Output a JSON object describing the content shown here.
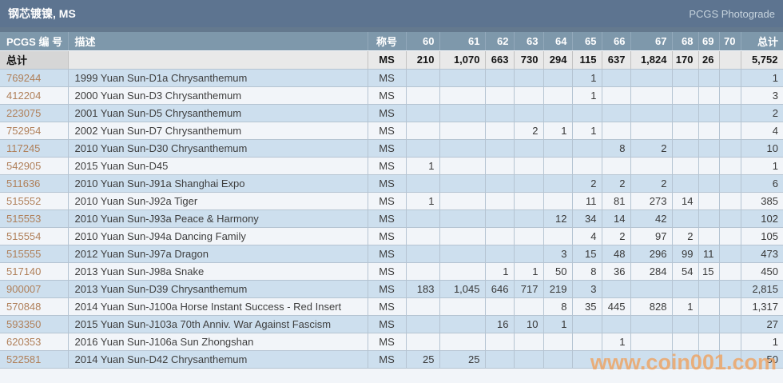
{
  "header": {
    "title": "钢芯镀镍, MS",
    "photograde_link": "PCGS Photograde"
  },
  "table": {
    "columns": {
      "pcgs": "PCGS 编 号",
      "description": "描述",
      "designation": "称号",
      "total": "总计"
    },
    "grades": [
      "60",
      "61",
      "62",
      "63",
      "64",
      "65",
      "66",
      "67",
      "68",
      "69",
      "70"
    ],
    "totals_row": {
      "label": "总计",
      "description": "",
      "designation": "MS",
      "values": [
        "210",
        "1,070",
        "663",
        "730",
        "294",
        "115",
        "637",
        "1,824",
        "170",
        "26",
        ""
      ],
      "total": "5,752"
    },
    "rows": [
      {
        "pcgs": "769244",
        "description": "1999 Yuan Sun-D1a Chrysanthemum",
        "designation": "MS",
        "values": [
          "",
          "",
          "",
          "",
          "",
          "1",
          "",
          "",
          "",
          "",
          ""
        ],
        "total": "1"
      },
      {
        "pcgs": "412204",
        "description": "2000 Yuan Sun-D3 Chrysanthemum",
        "designation": "MS",
        "values": [
          "",
          "",
          "",
          "",
          "",
          "1",
          "",
          "",
          "",
          "",
          ""
        ],
        "total": "3"
      },
      {
        "pcgs": "223075",
        "description": "2001 Yuan Sun-D5 Chrysanthemum",
        "designation": "MS",
        "values": [
          "",
          "",
          "",
          "",
          "",
          "",
          "",
          "",
          "",
          "",
          ""
        ],
        "total": "2"
      },
      {
        "pcgs": "752954",
        "description": "2002 Yuan Sun-D7 Chrysanthemum",
        "designation": "MS",
        "values": [
          "",
          "",
          "",
          "2",
          "1",
          "1",
          "",
          "",
          "",
          "",
          ""
        ],
        "total": "4"
      },
      {
        "pcgs": "117245",
        "description": "2010 Yuan Sun-D30 Chrysanthemum",
        "designation": "MS",
        "values": [
          "",
          "",
          "",
          "",
          "",
          "",
          "8",
          "2",
          "",
          "",
          ""
        ],
        "total": "10"
      },
      {
        "pcgs": "542905",
        "description": "2015 Yuan Sun-D45",
        "designation": "MS",
        "values": [
          "1",
          "",
          "",
          "",
          "",
          "",
          "",
          "",
          "",
          "",
          ""
        ],
        "total": "1"
      },
      {
        "pcgs": "511636",
        "description": "2010 Yuan Sun-J91a Shanghai Expo",
        "designation": "MS",
        "values": [
          "",
          "",
          "",
          "",
          "",
          "2",
          "2",
          "2",
          "",
          "",
          ""
        ],
        "total": "6"
      },
      {
        "pcgs": "515552",
        "description": "2010 Yuan Sun-J92a Tiger",
        "designation": "MS",
        "values": [
          "1",
          "",
          "",
          "",
          "",
          "11",
          "81",
          "273",
          "14",
          "",
          ""
        ],
        "total": "385"
      },
      {
        "pcgs": "515553",
        "description": "2010 Yuan Sun-J93a Peace & Harmony",
        "designation": "MS",
        "values": [
          "",
          "",
          "",
          "",
          "12",
          "34",
          "14",
          "42",
          "",
          "",
          ""
        ],
        "total": "102"
      },
      {
        "pcgs": "515554",
        "description": "2010 Yuan Sun-J94a Dancing Family",
        "designation": "MS",
        "values": [
          "",
          "",
          "",
          "",
          "",
          "4",
          "2",
          "97",
          "2",
          "",
          ""
        ],
        "total": "105"
      },
      {
        "pcgs": "515555",
        "description": "2012 Yuan Sun-J97a Dragon",
        "designation": "MS",
        "values": [
          "",
          "",
          "",
          "",
          "3",
          "15",
          "48",
          "296",
          "99",
          "11",
          ""
        ],
        "total": "473"
      },
      {
        "pcgs": "517140",
        "description": "2013 Yuan Sun-J98a Snake",
        "designation": "MS",
        "values": [
          "",
          "",
          "1",
          "1",
          "50",
          "8",
          "36",
          "284",
          "54",
          "15",
          ""
        ],
        "total": "450"
      },
      {
        "pcgs": "900007",
        "description": "2013 Yuan Sun-D39 Chrysanthemum",
        "designation": "MS",
        "values": [
          "183",
          "1,045",
          "646",
          "717",
          "219",
          "3",
          "",
          "",
          "",
          "",
          ""
        ],
        "total": "2,815"
      },
      {
        "pcgs": "570848",
        "description": "2014 Yuan Sun-J100a Horse Instant Success - Red Insert",
        "designation": "MS",
        "values": [
          "",
          "",
          "",
          "",
          "8",
          "35",
          "445",
          "828",
          "1",
          "",
          ""
        ],
        "total": "1,317"
      },
      {
        "pcgs": "593350",
        "description": "2015 Yuan Sun-J103a 70th Anniv. War Against Fascism",
        "designation": "MS",
        "values": [
          "",
          "",
          "16",
          "10",
          "1",
          "",
          "",
          "",
          "",
          "",
          ""
        ],
        "total": "27"
      },
      {
        "pcgs": "620353",
        "description": "2016 Yuan Sun-J106a Sun Zhongshan",
        "designation": "MS",
        "values": [
          "",
          "",
          "",
          "",
          "",
          "",
          "1",
          "",
          "",
          "",
          ""
        ],
        "total": "1"
      },
      {
        "pcgs": "522581",
        "description": "2014 Yuan Sun-D42 Chrysanthemum",
        "designation": "MS",
        "values": [
          "25",
          "25",
          "",
          "",
          "",
          "",
          "",
          "",
          "",
          "",
          ""
        ],
        "total": "50"
      }
    ]
  },
  "watermark": {
    "text": "www.coin001.com"
  },
  "colors": {
    "title_bar_bg": "#5d7490",
    "header_row_bg": "#7e98ab",
    "totals_row_bg": "#e9e9e9",
    "totals_label_bg": "#d6d6d6",
    "row_alt_blue": "#cddfee",
    "row_alt_white": "#f2f5f9",
    "pcgs_number_color": "#b0805a",
    "watermark_color": "#efa25f"
  }
}
